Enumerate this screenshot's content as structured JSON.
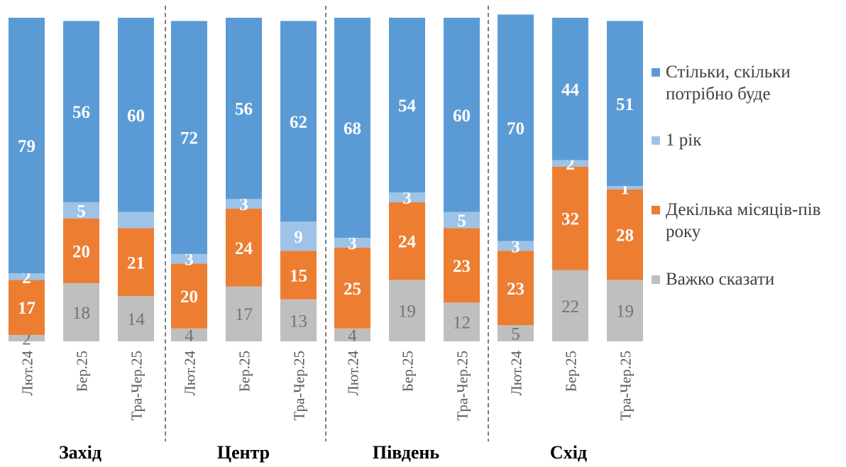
{
  "chart_data": {
    "type": "bar",
    "stacked": true,
    "ylim": [
      0,
      100
    ],
    "grid": false,
    "legend_position": "right",
    "colors": {
      "Стільки, скільки потрібно буде": "#5B9BD5",
      "1 рік": "#9DC3E6",
      "Декілька місяців-пів року": "#ED7D31",
      "Важко сказати": "#BFBFBF"
    },
    "legend": [
      "Стільки, скільки потрібно буде",
      "1 рік",
      "Декілька місяців-пів року",
      "Важко сказати"
    ],
    "groups": [
      {
        "name": "Захід",
        "categories": [
          "Лют.24",
          "Бер.25",
          "Тра-Чер.25"
        ],
        "series": [
          {
            "name": "Важко сказати",
            "values": [
              2,
              18,
              14
            ],
            "labels": [
              "2",
              "18",
              "14"
            ]
          },
          {
            "name": "Декілька місяців-пів року",
            "values": [
              17,
              20,
              21
            ],
            "labels": [
              "17",
              "20",
              "21"
            ]
          },
          {
            "name": "1 рік",
            "values": [
              2,
              5,
              5
            ],
            "labels": [
              "2",
              "5",
              ""
            ]
          },
          {
            "name": "Стільки, скільки потрібно буде",
            "values": [
              79,
              56,
              60
            ],
            "labels": [
              "79",
              "56",
              "60"
            ]
          }
        ]
      },
      {
        "name": "Центр",
        "categories": [
          "Лют.24",
          "Бер.25",
          "Тра-Чер.25"
        ],
        "series": [
          {
            "name": "Важко сказати",
            "values": [
              4,
              17,
              13
            ],
            "labels": [
              "4",
              "17",
              "13"
            ]
          },
          {
            "name": "Декілька місяців-пів року",
            "values": [
              20,
              24,
              15
            ],
            "labels": [
              "20",
              "24",
              "15"
            ]
          },
          {
            "name": "1 рік",
            "values": [
              3,
              3,
              9
            ],
            "labels": [
              "3",
              "3",
              "9"
            ]
          },
          {
            "name": "Стільки, скільки потрібно буде",
            "values": [
              72,
              56,
              62
            ],
            "labels": [
              "72",
              "56",
              "62"
            ]
          }
        ]
      },
      {
        "name": "Південь",
        "categories": [
          "Лют.24",
          "Бер.25",
          "Тра-Чер.25"
        ],
        "series": [
          {
            "name": "Важко сказати",
            "values": [
              4,
              19,
              12
            ],
            "labels": [
              "4",
              "19",
              "12"
            ]
          },
          {
            "name": "Декілька місяців-пів року",
            "values": [
              25,
              24,
              23
            ],
            "labels": [
              "25",
              "24",
              "23"
            ]
          },
          {
            "name": "1 рік",
            "values": [
              3,
              3,
              5
            ],
            "labels": [
              "3",
              "3",
              "5"
            ]
          },
          {
            "name": "Стільки, скільки потрібно буде",
            "values": [
              68,
              54,
              60
            ],
            "labels": [
              "68",
              "54",
              "60"
            ]
          }
        ]
      },
      {
        "name": "Схід",
        "categories": [
          "Лют.24",
          "Бер.25",
          "Тра-Чер.25"
        ],
        "series": [
          {
            "name": "Важко сказати",
            "values": [
              5,
              22,
              19
            ],
            "labels": [
              "5",
              "22",
              "19"
            ]
          },
          {
            "name": "Декілька місяців-пів року",
            "values": [
              23,
              32,
              28
            ],
            "labels": [
              "23",
              "32",
              "28"
            ]
          },
          {
            "name": "1 рік",
            "values": [
              3,
              2,
              1
            ],
            "labels": [
              "3",
              "2",
              "1"
            ]
          },
          {
            "name": "Стільки, скільки потрібно буде",
            "values": [
              70,
              44,
              51
            ],
            "labels": [
              "70",
              "44",
              "51"
            ]
          }
        ]
      }
    ]
  }
}
